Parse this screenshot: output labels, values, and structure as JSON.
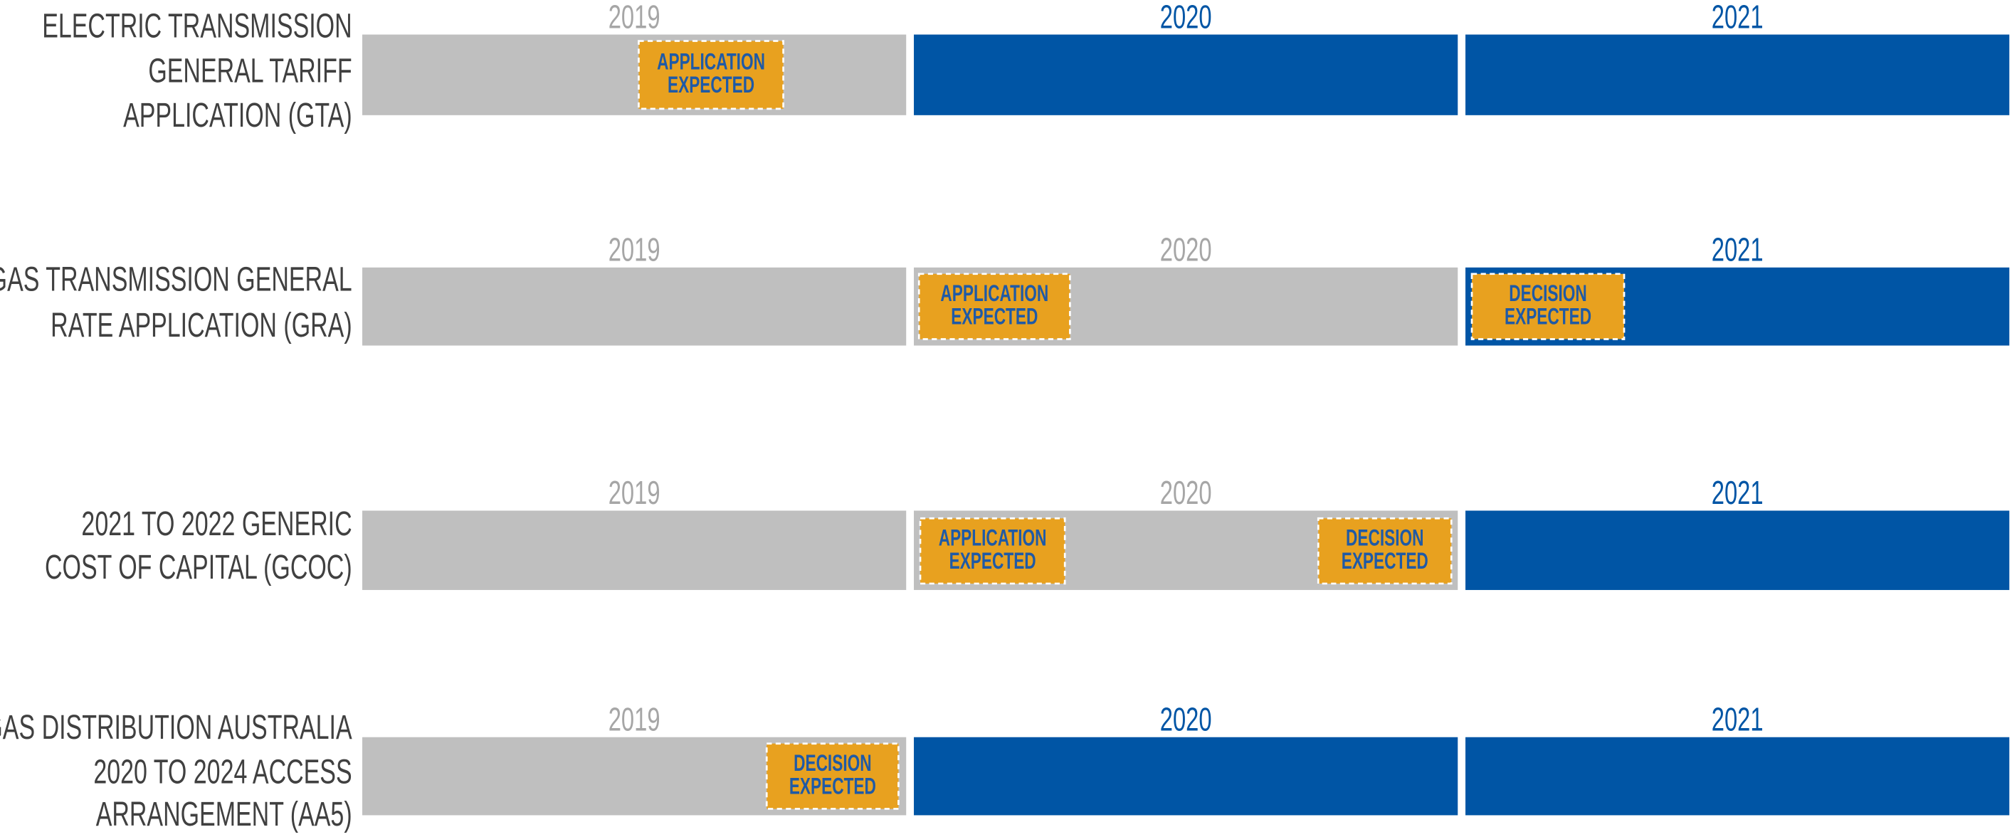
{
  "rows": [
    {
      "label": [
        "ELECTRIC TRANSMISSION",
        "GENERAL TARIFF",
        "APPLICATION (GTA)"
      ],
      "years": [
        {
          "year": "2019",
          "active": false
        },
        {
          "year": "2020",
          "active": true
        },
        {
          "year": "2021",
          "active": true
        }
      ],
      "markers": [
        {
          "text": [
            "APPLICATION",
            "EXPECTED"
          ]
        }
      ]
    },
    {
      "label": [
        "GAS TRANSMISSION GENERAL",
        "RATE APPLICATION (GRA)"
      ],
      "years": [
        {
          "year": "2019",
          "active": false
        },
        {
          "year": "2020",
          "active": false
        },
        {
          "year": "2021",
          "active": true
        }
      ],
      "markers": [
        {
          "text": [
            "APPLICATION",
            "EXPECTED"
          ]
        },
        {
          "text": [
            "DECISION",
            "EXPECTED"
          ]
        }
      ]
    },
    {
      "label": [
        "2021 TO 2022 GENERIC",
        "COST OF CAPITAL (GCOC)"
      ],
      "years": [
        {
          "year": "2019",
          "active": false
        },
        {
          "year": "2020",
          "active": false
        },
        {
          "year": "2021",
          "active": true
        }
      ],
      "markers": [
        {
          "text": [
            "APPLICATION",
            "EXPECTED"
          ]
        },
        {
          "text": [
            "DECISION",
            "EXPECTED"
          ]
        }
      ]
    },
    {
      "label": [
        "GAS DISTRIBUTION AUSTRALIA",
        "2020 TO 2024 ACCESS",
        "ARRANGEMENT (AA5)"
      ],
      "years": [
        {
          "year": "2019",
          "active": false
        },
        {
          "year": "2020",
          "active": true
        },
        {
          "year": "2021",
          "active": true
        }
      ],
      "markers": [
        {
          "text": [
            "DECISION",
            "EXPECTED"
          ]
        }
      ]
    }
  ]
}
